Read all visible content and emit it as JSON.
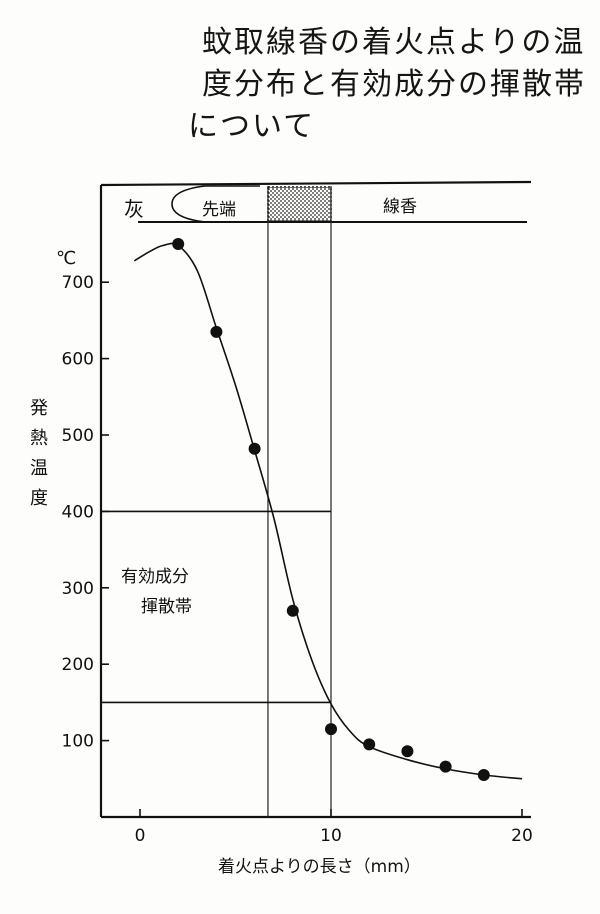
{
  "title_lines": [
    "蚊取線香の着火点よりの温",
    "度分布と有効成分の揮散帯",
    "について"
  ],
  "chart_data": {
    "type": "scatter",
    "xlabel": "着火点よりの長さ（mm）",
    "ylabel": "発熱温度",
    "yunit": "℃",
    "xlim": [
      -2,
      21
    ],
    "ylim": [
      0,
      780
    ],
    "xticks": [
      0,
      10,
      20
    ],
    "yticks": [
      100,
      200,
      300,
      400,
      500,
      600,
      700
    ],
    "grid": false,
    "points": [
      {
        "x": 2,
        "y": 750
      },
      {
        "x": 4,
        "y": 635
      },
      {
        "x": 6,
        "y": 482
      },
      {
        "x": 8,
        "y": 270
      },
      {
        "x": 10,
        "y": 115
      },
      {
        "x": 12,
        "y": 95
      },
      {
        "x": 14,
        "y": 86
      },
      {
        "x": 16,
        "y": 66
      },
      {
        "x": 18,
        "y": 55
      }
    ],
    "fitted_curve": [
      {
        "x": -0.3,
        "y": 728
      },
      {
        "x": 0.5,
        "y": 740
      },
      {
        "x": 1.2,
        "y": 748
      },
      {
        "x": 2,
        "y": 748
      },
      {
        "x": 3,
        "y": 715
      },
      {
        "x": 4,
        "y": 640
      },
      {
        "x": 5,
        "y": 565
      },
      {
        "x": 6,
        "y": 480
      },
      {
        "x": 7,
        "y": 392
      },
      {
        "x": 8,
        "y": 285
      },
      {
        "x": 9,
        "y": 205
      },
      {
        "x": 10,
        "y": 148
      },
      {
        "x": 11,
        "y": 112
      },
      {
        "x": 12,
        "y": 92
      },
      {
        "x": 14,
        "y": 75
      },
      {
        "x": 16,
        "y": 63
      },
      {
        "x": 18,
        "y": 55
      },
      {
        "x": 20,
        "y": 50
      }
    ],
    "band": {
      "label_lines": [
        "有効成分",
        "揮散帯"
      ],
      "y_low": 150,
      "y_high": 400
    },
    "vertical_lines": [
      6.7,
      10
    ],
    "header_bar": {
      "ash_label": "灰",
      "tip_label": "先端",
      "coil_label": "線香",
      "hatched_range": [
        6.7,
        10
      ]
    }
  }
}
